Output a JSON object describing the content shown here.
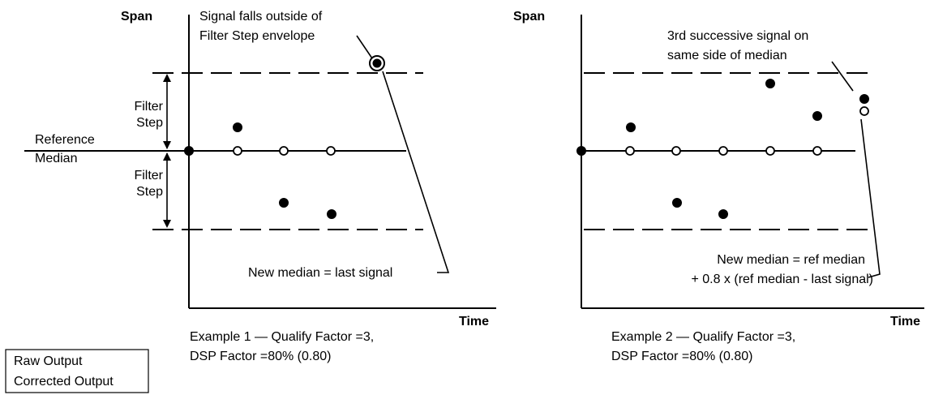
{
  "example1": {
    "y_axis_label": "Span",
    "x_axis_label": "Time",
    "annotation_top": [
      "Signal falls outside of",
      "Filter Step envelope"
    ],
    "filter_step_upper": [
      "Filter",
      "Step"
    ],
    "filter_step_lower": [
      "Filter",
      "Step"
    ],
    "reference_median": [
      "Reference",
      "Median"
    ],
    "new_median": "New median = last signal",
    "caption": [
      "Example 1 — Qualify Factor =3,",
      "DSP Factor =80% (0.80)"
    ]
  },
  "example2": {
    "y_axis_label": "Span",
    "x_axis_label": "Time",
    "annotation_top": [
      "3rd successive signal on",
      "same side of median"
    ],
    "new_median": [
      "New median = ref median",
      "+ 0.8 x (ref median - last signal)"
    ],
    "caption": [
      "Example 2 — Qualify Factor =3,",
      "DSP Factor =80% (0.80)"
    ]
  },
  "legend": {
    "items": [
      "Raw Output",
      "Corrected Output"
    ]
  }
}
